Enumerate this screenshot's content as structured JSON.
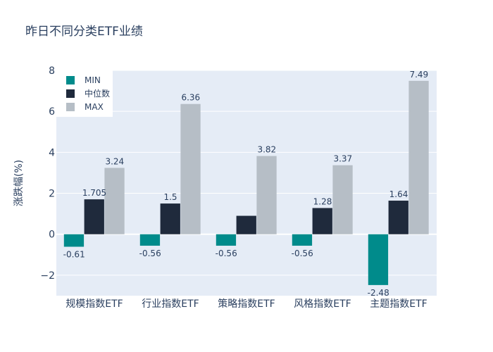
{
  "chart_data": {
    "type": "bar",
    "title": "昨日不同分类ETF业绩",
    "xlabel": "",
    "ylabel": "涨跌幅(%)",
    "ylim": [
      -3,
      8
    ],
    "yticks": [
      -2,
      0,
      2,
      4,
      6,
      8
    ],
    "ytick_labels": [
      "−2",
      "0",
      "2",
      "4",
      "6",
      "8"
    ],
    "categories": [
      "规模指数ETF",
      "行业指数ETF",
      "策略指数ETF",
      "风格指数ETF",
      "主题指数ETF"
    ],
    "series": [
      {
        "name": "MIN",
        "color": "#008b8b",
        "values": [
          -0.61,
          -0.56,
          -0.56,
          -0.56,
          -2.48
        ],
        "labels": [
          "-0.61",
          "-0.56",
          "-0.56",
          "-0.56",
          "-2.48"
        ]
      },
      {
        "name": "中位数",
        "color": "#1f2a3c",
        "values": [
          1.705,
          1.5,
          0.9,
          1.28,
          1.64
        ],
        "labels": [
          "1.705",
          "1.5",
          "",
          "1.28",
          "1.64"
        ]
      },
      {
        "name": "MAX",
        "color": "#b6bec6",
        "values": [
          3.24,
          6.36,
          3.82,
          3.37,
          7.49
        ],
        "labels": [
          "3.24",
          "6.36",
          "3.82",
          "3.37",
          "7.49"
        ]
      }
    ],
    "legend_position": "top-left",
    "grid": true
  }
}
